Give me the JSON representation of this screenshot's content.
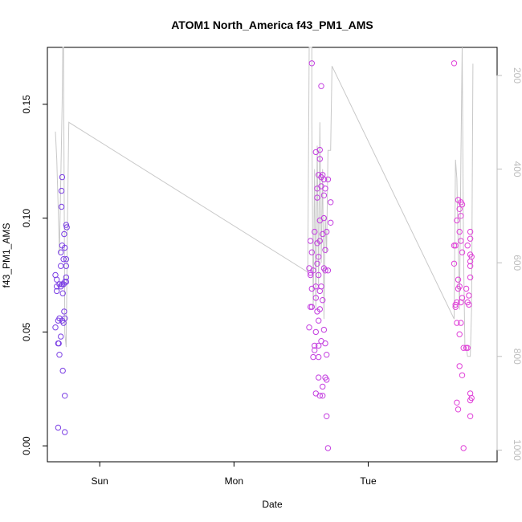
{
  "chart_data": {
    "type": "scatter",
    "title": "ATOM1 North_America f43_PM1_AMS",
    "xlabel": "Date",
    "ylabel": "f43_PM1_AMS",
    "x_ticks": [
      "Sun",
      "Mon",
      "Tue"
    ],
    "y_ticks": [
      "0.00",
      "0.05",
      "0.10",
      "0.15"
    ],
    "y_tick_values": [
      0.0,
      0.05,
      0.1,
      0.15
    ],
    "y2_ticks": [
      "200",
      "400",
      "600",
      "800",
      "1000"
    ],
    "y2_tick_values": [
      200,
      400,
      600,
      800,
      1000
    ],
    "xlim": [
      -0.39,
      2.96
    ],
    "ylim": [
      -0.007,
      0.175
    ],
    "y2lim": [
      1025,
      140
    ],
    "y2_note": "secondary axis (unlabeled), reversed",
    "grid": false,
    "legend": "none",
    "colors": {
      "points_early": "#7b3fe4",
      "points_mid": "#c43fe0",
      "points_late": "#e040d8",
      "line": "#c8c8c8",
      "axis": "#000000",
      "right_axis": "#bdbdbd"
    },
    "series": [
      {
        "color_key": "points_early",
        "marker": "open-circle",
        "points": [
          [
            -0.33,
            0.075
          ],
          [
            -0.33,
            0.052
          ],
          [
            -0.32,
            0.073
          ],
          [
            -0.32,
            0.068
          ],
          [
            -0.32,
            0.07
          ],
          [
            -0.31,
            0.055
          ],
          [
            -0.31,
            0.045
          ],
          [
            -0.31,
            0.008
          ],
          [
            -0.305,
            0.045
          ],
          [
            -0.3,
            0.04
          ],
          [
            -0.3,
            0.071
          ],
          [
            -0.3,
            0.056
          ],
          [
            -0.29,
            0.085
          ],
          [
            -0.29,
            0.079
          ],
          [
            -0.29,
            0.07
          ],
          [
            -0.29,
            0.048
          ],
          [
            -0.285,
            0.105
          ],
          [
            -0.285,
            0.112
          ],
          [
            -0.28,
            0.118
          ],
          [
            -0.28,
            0.088
          ],
          [
            -0.28,
            0.071
          ],
          [
            -0.28,
            0.055
          ],
          [
            -0.275,
            0.033
          ],
          [
            -0.275,
            0.067
          ],
          [
            -0.27,
            0.082
          ],
          [
            -0.27,
            0.054
          ],
          [
            -0.27,
            0.071
          ],
          [
            -0.265,
            0.093
          ],
          [
            -0.265,
            0.059
          ],
          [
            -0.26,
            0.022
          ],
          [
            -0.26,
            0.087
          ],
          [
            -0.26,
            0.072
          ],
          [
            -0.26,
            0.056
          ],
          [
            -0.26,
            0.006
          ],
          [
            -0.25,
            0.097
          ],
          [
            -0.25,
            0.082
          ],
          [
            -0.25,
            0.079
          ],
          [
            -0.25,
            0.074
          ],
          [
            -0.25,
            0.072
          ],
          [
            -0.245,
            0.096
          ]
        ]
      },
      {
        "color_key": "points_mid",
        "marker": "open-circle",
        "points": [
          [
            1.56,
            0.052
          ],
          [
            1.56,
            0.078
          ],
          [
            1.57,
            0.09
          ],
          [
            1.57,
            0.076
          ],
          [
            1.57,
            0.075
          ],
          [
            1.57,
            0.061
          ],
          [
            1.58,
            0.168
          ],
          [
            1.58,
            0.085
          ],
          [
            1.58,
            0.069
          ],
          [
            1.58,
            0.061
          ],
          [
            1.59,
            0.077
          ],
          [
            1.59,
            0.039
          ],
          [
            1.6,
            0.094
          ],
          [
            1.6,
            0.044
          ],
          [
            1.6,
            0.042
          ],
          [
            1.61,
            0.023
          ],
          [
            1.61,
            0.129
          ],
          [
            1.61,
            0.065
          ],
          [
            1.61,
            0.07
          ],
          [
            1.61,
            0.05
          ],
          [
            1.62,
            0.113
          ],
          [
            1.62,
            0.109
          ],
          [
            1.62,
            0.089
          ],
          [
            1.62,
            0.08
          ],
          [
            1.62,
            0.059
          ],
          [
            1.63,
            0.119
          ],
          [
            1.63,
            0.083
          ],
          [
            1.63,
            0.075
          ],
          [
            1.63,
            0.055
          ],
          [
            1.63,
            0.044
          ],
          [
            1.63,
            0.039
          ],
          [
            1.63,
            0.03
          ],
          [
            1.64,
            0.126
          ],
          [
            1.64,
            0.13
          ],
          [
            1.64,
            0.09
          ],
          [
            1.64,
            0.099
          ],
          [
            1.64,
            0.068
          ],
          [
            1.64,
            0.06
          ],
          [
            1.64,
            0.022
          ],
          [
            1.65,
            0.158
          ],
          [
            1.65,
            0.118
          ],
          [
            1.65,
            0.114
          ],
          [
            1.65,
            0.07
          ],
          [
            1.65,
            0.046
          ],
          [
            1.66,
            0.119
          ],
          [
            1.66,
            0.093
          ],
          [
            1.66,
            0.064
          ],
          [
            1.66,
            0.026
          ],
          [
            1.66,
            0.022
          ],
          [
            1.67,
            0.117
          ],
          [
            1.67,
            0.11
          ],
          [
            1.67,
            0.1
          ],
          [
            1.67,
            0.078
          ],
          [
            1.67,
            0.051
          ],
          [
            1.68,
            0.113
          ],
          [
            1.68,
            0.086
          ],
          [
            1.68,
            0.077
          ],
          [
            1.68,
            0.045
          ],
          [
            1.68,
            0.03
          ],
          [
            1.69,
            0.094
          ],
          [
            1.69,
            0.04
          ],
          [
            1.69,
            0.029
          ],
          [
            1.69,
            0.013
          ],
          [
            1.7,
            0.117
          ],
          [
            1.7,
            0.077
          ],
          [
            1.7,
            -0.001
          ],
          [
            1.72,
            0.107
          ],
          [
            1.72,
            0.098
          ]
        ]
      },
      {
        "color_key": "points_late",
        "marker": "open-circle",
        "points": [
          [
            2.64,
            0.168
          ],
          [
            2.64,
            0.088
          ],
          [
            2.64,
            0.08
          ],
          [
            2.65,
            0.088
          ],
          [
            2.65,
            0.062
          ],
          [
            2.65,
            0.061
          ],
          [
            2.66,
            0.099
          ],
          [
            2.66,
            0.063
          ],
          [
            2.66,
            0.054
          ],
          [
            2.66,
            0.019
          ],
          [
            2.67,
            0.108
          ],
          [
            2.67,
            0.073
          ],
          [
            2.67,
            0.069
          ],
          [
            2.67,
            0.016
          ],
          [
            2.68,
            0.104
          ],
          [
            2.68,
            0.094
          ],
          [
            2.68,
            0.07
          ],
          [
            2.68,
            0.049
          ],
          [
            2.68,
            0.035
          ],
          [
            2.69,
            0.107
          ],
          [
            2.69,
            0.101
          ],
          [
            2.69,
            0.09
          ],
          [
            2.69,
            0.063
          ],
          [
            2.69,
            0.054
          ],
          [
            2.7,
            0.106
          ],
          [
            2.7,
            0.085
          ],
          [
            2.7,
            0.065
          ],
          [
            2.7,
            0.031
          ],
          [
            2.71,
            0.043
          ],
          [
            2.71,
            -0.001
          ],
          [
            2.73,
            0.069
          ],
          [
            2.73,
            0.043
          ],
          [
            2.74,
            0.088
          ],
          [
            2.74,
            0.063
          ],
          [
            2.74,
            0.043
          ],
          [
            2.75,
            0.066
          ],
          [
            2.75,
            0.062
          ],
          [
            2.76,
            0.094
          ],
          [
            2.76,
            0.091
          ],
          [
            2.76,
            0.084
          ],
          [
            2.76,
            0.081
          ],
          [
            2.76,
            0.079
          ],
          [
            2.76,
            0.074
          ],
          [
            2.76,
            0.02
          ],
          [
            2.76,
            0.023
          ],
          [
            2.76,
            0.013
          ],
          [
            2.77,
            0.083
          ],
          [
            2.77,
            0.021
          ]
        ]
      }
    ],
    "line_series": {
      "color_key": "line",
      "axis": "right",
      "points": [
        [
          -0.33,
          320
        ],
        [
          -0.32,
          380
        ],
        [
          -0.31,
          480
        ],
        [
          -0.3,
          580
        ],
        [
          -0.29,
          420
        ],
        [
          -0.28,
          260
        ],
        [
          -0.275,
          140
        ],
        [
          -0.27,
          140
        ],
        [
          -0.26,
          750
        ],
        [
          -0.25,
          780
        ],
        [
          -0.24,
          500
        ],
        [
          -0.23,
          300
        ],
        [
          1.55,
          620
        ],
        [
          1.56,
          140
        ],
        [
          1.58,
          140
        ],
        [
          1.58,
          300
        ],
        [
          1.59,
          700
        ],
        [
          1.6,
          400
        ],
        [
          1.61,
          700
        ],
        [
          1.62,
          350
        ],
        [
          1.63,
          650
        ],
        [
          1.64,
          300
        ],
        [
          1.65,
          600
        ],
        [
          1.66,
          400
        ],
        [
          1.67,
          720
        ],
        [
          1.68,
          500
        ],
        [
          1.69,
          580
        ],
        [
          1.7,
          360
        ],
        [
          1.71,
          360
        ],
        [
          1.72,
          360
        ],
        [
          1.73,
          180
        ],
        [
          2.64,
          720
        ],
        [
          2.65,
          380
        ],
        [
          2.66,
          420
        ],
        [
          2.67,
          560
        ],
        [
          2.68,
          700
        ],
        [
          2.69,
          380
        ],
        [
          2.7,
          140
        ],
        [
          2.71,
          580
        ],
        [
          2.72,
          780
        ],
        [
          2.73,
          780
        ],
        [
          2.74,
          800
        ],
        [
          2.76,
          800
        ],
        [
          2.77,
          700
        ],
        [
          2.78,
          175
        ]
      ]
    }
  }
}
